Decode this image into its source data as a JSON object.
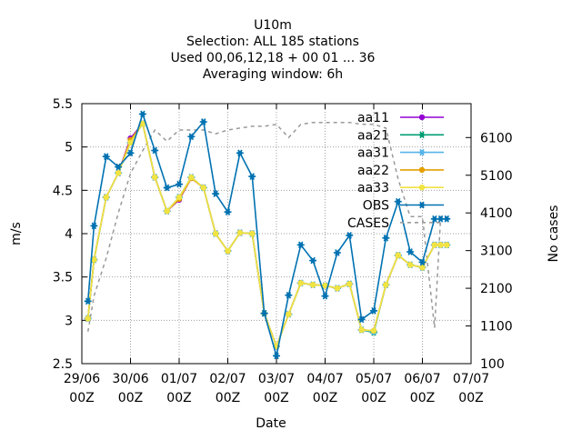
{
  "chart_data": {
    "type": "line",
    "title_lines": [
      "U10m",
      "Selection: ALL    185 stations",
      "Used  00,06,12,18 + 00 01 ... 36",
      "Averaging window:  6h"
    ],
    "xlabel": "Date",
    "ylabel": "m/s",
    "y2label": "No cases",
    "x_unit": "hours since 29/06 00Z",
    "xlim": [
      0,
      192
    ],
    "ylim": [
      2.5,
      5.5
    ],
    "y2lim": [
      100,
      7000
    ],
    "x_ticks": [
      {
        "x": 0,
        "line1": "29/06",
        "line2": "00Z"
      },
      {
        "x": 24,
        "line1": "30/06",
        "line2": "00Z"
      },
      {
        "x": 48,
        "line1": "01/07",
        "line2": "00Z"
      },
      {
        "x": 72,
        "line1": "02/07",
        "line2": "00Z"
      },
      {
        "x": 96,
        "line1": "03/07",
        "line2": "00Z"
      },
      {
        "x": 120,
        "line1": "04/07",
        "line2": "00Z"
      },
      {
        "x": 144,
        "line1": "05/07",
        "line2": "00Z"
      },
      {
        "x": 168,
        "line1": "06/07",
        "line2": "00Z"
      },
      {
        "x": 192,
        "line1": "07/07",
        "line2": "00Z"
      }
    ],
    "y_ticks": [
      "2.5",
      "3",
      "3.5",
      "4",
      "4.5",
      "5",
      "5.5"
    ],
    "y2_ticks": [
      "100",
      "1100",
      "2100",
      "3100",
      "4100",
      "5100",
      "6100"
    ],
    "grid": true,
    "legend_position": "top-right",
    "x": [
      3,
      6,
      12,
      18,
      24,
      30,
      36,
      42,
      48,
      54,
      60,
      66,
      72,
      78,
      84,
      90,
      96,
      102,
      108,
      114,
      120,
      126,
      132,
      138,
      144,
      150,
      156,
      162,
      168,
      174,
      177,
      180
    ],
    "series": [
      {
        "name": "aa11",
        "color": "#9400d3",
        "marker": "dot",
        "values": [
          3.02,
          3.7,
          4.42,
          4.7,
          5.1,
          5.27,
          4.65,
          4.26,
          4.39,
          4.64,
          4.53,
          4.0,
          3.8,
          4.01,
          4.0,
          3.08,
          2.7,
          3.07,
          3.43,
          3.41,
          3.4,
          3.37,
          3.42,
          2.89,
          2.88,
          3.41,
          3.75,
          3.64,
          3.61,
          3.87,
          3.87,
          3.87
        ]
      },
      {
        "name": "aa21",
        "color": "#009e73",
        "marker": "star",
        "values": [
          3.02,
          3.7,
          4.42,
          4.7,
          5.05,
          5.27,
          4.65,
          4.26,
          4.42,
          4.65,
          4.53,
          4.0,
          3.8,
          4.01,
          4.0,
          3.08,
          2.7,
          3.07,
          3.43,
          3.41,
          3.4,
          3.37,
          3.42,
          2.89,
          2.86,
          3.41,
          3.75,
          3.64,
          3.61,
          3.87,
          3.87,
          3.87
        ]
      },
      {
        "name": "aa31",
        "color": "#56b4e9",
        "marker": "star",
        "values": [
          3.02,
          3.7,
          4.42,
          4.7,
          5.05,
          5.27,
          4.65,
          4.26,
          4.42,
          4.65,
          4.53,
          4.0,
          3.8,
          4.01,
          4.0,
          3.08,
          2.7,
          3.07,
          3.43,
          3.41,
          3.4,
          3.37,
          3.42,
          2.89,
          2.87,
          3.41,
          3.75,
          3.64,
          3.61,
          3.87,
          3.87,
          3.87
        ]
      },
      {
        "name": "aa22",
        "color": "#e69f00",
        "marker": "dot",
        "values": [
          3.02,
          3.7,
          4.42,
          4.7,
          5.08,
          5.27,
          4.65,
          4.26,
          4.4,
          4.64,
          4.53,
          4.0,
          3.8,
          4.01,
          4.0,
          3.08,
          2.7,
          3.07,
          3.43,
          3.41,
          3.4,
          3.37,
          3.42,
          2.89,
          2.88,
          3.41,
          3.75,
          3.64,
          3.61,
          3.87,
          3.87,
          3.87
        ]
      },
      {
        "name": "aa33",
        "color": "#f0e442",
        "marker": "dot",
        "values": [
          3.02,
          3.7,
          4.42,
          4.7,
          5.05,
          5.27,
          4.65,
          4.26,
          4.42,
          4.65,
          4.53,
          4.0,
          3.8,
          4.01,
          4.0,
          3.08,
          2.7,
          3.07,
          3.43,
          3.41,
          3.4,
          3.37,
          3.42,
          2.89,
          2.88,
          3.41,
          3.75,
          3.64,
          3.61,
          3.87,
          3.87,
          3.87
        ]
      },
      {
        "name": "OBS",
        "color": "#0072b2",
        "marker": "star",
        "values": [
          3.22,
          4.09,
          4.89,
          4.77,
          4.93,
          5.38,
          4.96,
          4.53,
          4.57,
          5.12,
          5.29,
          4.46,
          4.25,
          4.93,
          4.66,
          3.08,
          2.59,
          3.29,
          3.87,
          3.69,
          3.28,
          3.78,
          3.98,
          3.01,
          3.11,
          3.95,
          4.37,
          3.79,
          3.67,
          4.17,
          4.17,
          4.17
        ]
      }
    ],
    "cases": {
      "name": "CASES",
      "color": "#999999",
      "dash": true,
      "x": [
        3,
        6,
        12,
        18,
        24,
        30,
        36,
        42,
        48,
        54,
        60,
        66,
        72,
        78,
        84,
        90,
        96,
        102,
        108,
        114,
        120,
        126,
        132,
        138,
        144,
        150,
        156,
        162,
        168,
        174,
        177,
        180
      ],
      "values": [
        950,
        1900,
        2900,
        4100,
        5150,
        5750,
        6300,
        6000,
        6300,
        6300,
        6300,
        6200,
        6300,
        6350,
        6400,
        6400,
        6450,
        6100,
        6450,
        6500,
        6500,
        6500,
        6500,
        6450,
        6450,
        6350,
        5000,
        4000,
        4000,
        1050,
        4000,
        4000
      ]
    },
    "legend_order": [
      "aa11",
      "aa21",
      "aa31",
      "aa22",
      "aa33",
      "OBS",
      "CASES"
    ]
  }
}
